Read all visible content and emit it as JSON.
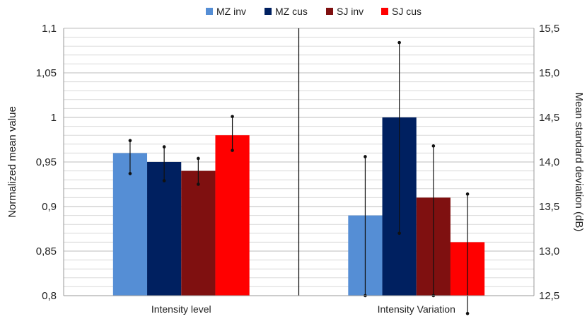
{
  "chart_data": {
    "type": "bar",
    "categories": [
      "Intensity level",
      "Intensity Variation"
    ],
    "series": [
      {
        "name": "MZ inv",
        "color": "#558ED5",
        "values": [
          0.96,
          0.89
        ],
        "error_low": [
          0.937,
          0.8
        ],
        "error_high": [
          0.974,
          0.956
        ]
      },
      {
        "name": "MZ cus",
        "color": "#002060",
        "values": [
          0.95,
          1.0
        ],
        "error_low": [
          0.929,
          0.87
        ],
        "error_high": [
          0.967,
          1.084
        ]
      },
      {
        "name": "SJ inv",
        "color": "#7F1010",
        "values": [
          0.94,
          0.91
        ],
        "error_low": [
          0.925,
          0.8
        ],
        "error_high": [
          0.954,
          0.968
        ]
      },
      {
        "name": "SJ cus",
        "color": "#FF0000",
        "values": [
          0.98,
          0.86
        ],
        "error_low": [
          0.963,
          0.78
        ],
        "error_high": [
          1.001,
          0.914
        ]
      }
    ],
    "ylabel": "Normalized mean value",
    "y2label": "Mean standard deviation (dB)",
    "ylim": [
      0.8,
      1.1
    ],
    "y2lim": [
      12.5,
      15.5
    ],
    "yticks": [
      "0,8",
      "0,85",
      "0,9",
      "0,95",
      "1",
      "1,05",
      "1,1"
    ],
    "y2ticks": [
      "12,5",
      "13,0",
      "13,5",
      "14,0",
      "14,5",
      "15,0",
      "15,5"
    ],
    "legend_position": "top",
    "grid": true,
    "separator_line": true
  }
}
